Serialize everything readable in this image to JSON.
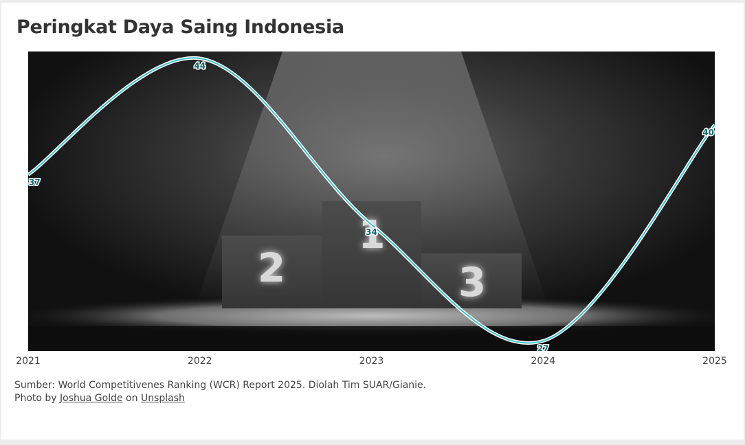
{
  "title": "Peringkat Daya Saing Indonesia",
  "chart_data": {
    "type": "line",
    "title": "Peringkat Daya Saing Indonesia",
    "xlabel": "",
    "ylabel": "",
    "categories": [
      "2021",
      "2022",
      "2023",
      "2024",
      "2025"
    ],
    "series": [
      {
        "values": [
          37,
          44,
          34,
          27,
          40
        ]
      }
    ],
    "data_labels": [
      "37",
      "44",
      "34",
      "27",
      "40"
    ],
    "grid": false,
    "line_color": "#3fc3d0",
    "label_color": "#0e6a75",
    "background": "podium-photo"
  },
  "podium": {
    "first": "1",
    "second": "2",
    "third": "3"
  },
  "footer": {
    "source": "Sumber: World Competitivenes Ranking (WCR) Report 2025. Diolah Tim SUAR/Gianie.",
    "photo_prefix": "Photo by",
    "photographer": "Joshua Golde",
    "photo_mid": "on",
    "site": "Unsplash"
  }
}
